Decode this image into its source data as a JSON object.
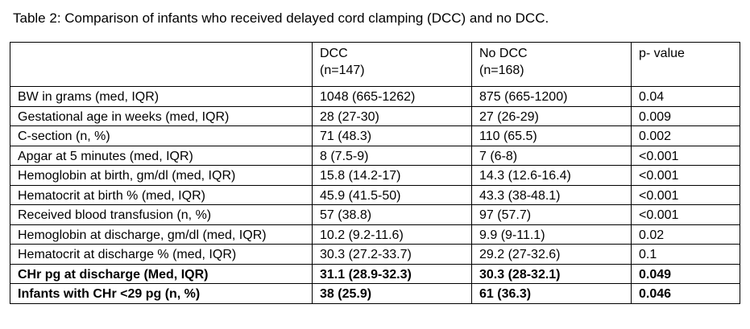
{
  "caption": "Table 2: Comparison of infants who received delayed cord clamping (DCC) and no DCC.",
  "table": {
    "header": {
      "col0": "",
      "col1_line1": "DCC",
      "col1_line2": "(n=147)",
      "col2_line1": "No DCC",
      "col2_line2": "(n=168)",
      "col3": "p- value"
    },
    "rows": [
      {
        "label": "BW in grams (med, IQR)",
        "dcc": "1048 (665-1262)",
        "no_dcc": "875 (665-1200)",
        "p": "0.04"
      },
      {
        "label": "Gestational age in weeks (med, IQR)",
        "dcc": "28 (27-30)",
        "no_dcc": "27 (26-29)",
        "p": "0.009"
      },
      {
        "label": "C-section (n, %)",
        "dcc": "71 (48.3)",
        "no_dcc": "110 (65.5)",
        "p": "0.002"
      },
      {
        "label": "Apgar at 5 minutes (med, IQR)",
        "dcc": "8 (7.5-9)",
        "no_dcc": "7 (6-8)",
        "p": "<0.001"
      },
      {
        "label": "Hemoglobin at birth, gm/dl (med, IQR)",
        "dcc": "15.8 (14.2-17)",
        "no_dcc": "14.3 (12.6-16.4)",
        "p": "<0.001"
      },
      {
        "label": "Hematocrit at birth % (med, IQR)",
        "dcc": "45.9 (41.5-50)",
        "no_dcc": "43.3 (38-48.1)",
        "p": "<0.001"
      },
      {
        "label": "Received blood transfusion (n, %)",
        "dcc": "57 (38.8)",
        "no_dcc": "97 (57.7)",
        "p": "<0.001"
      },
      {
        "label": "Hemoglobin at discharge, gm/dl (med, IQR)",
        "dcc": "10.2 (9.2-11.6)",
        "no_dcc": "9.9 (9-11.1)",
        "p": "0.02"
      },
      {
        "label": "Hematocrit at discharge % (med, IQR)",
        "dcc": "30.3 (27.2-33.7)",
        "no_dcc": "29.2 (27-32.6)",
        "p": "0.1"
      },
      {
        "label": "CHr pg at discharge (Med, IQR)",
        "dcc": "31.1 (28.9-32.3)",
        "no_dcc": "30.3 (28-32.1)",
        "p": "0.049"
      },
      {
        "label": "Infants with CHr <29 pg (n, %)",
        "dcc": "38 (25.9)",
        "no_dcc": "61 (36.3)",
        "p": "0.046"
      }
    ]
  }
}
